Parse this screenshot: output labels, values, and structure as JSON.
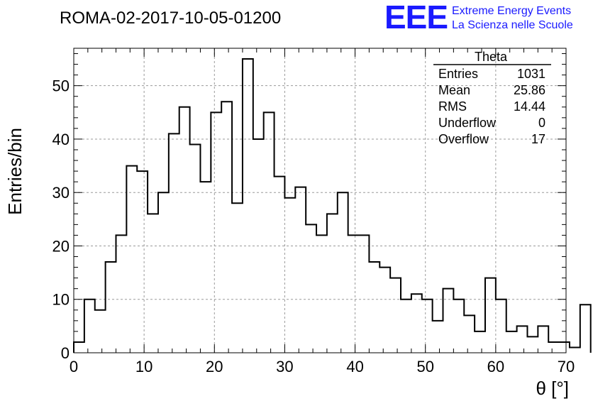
{
  "chart_data": {
    "type": "histogram",
    "title": "ROMA-02-2017-10-05-01200",
    "xlabel": "θ [°]",
    "ylabel": "Entries/bin",
    "xlim": [
      0,
      70
    ],
    "ylim": [
      0,
      57
    ],
    "grid": true,
    "x_ticks": [
      0,
      10,
      20,
      30,
      40,
      50,
      60,
      70
    ],
    "y_ticks": [
      0,
      10,
      20,
      30,
      40,
      50
    ],
    "bin_width": 1.5,
    "bin_start": 0,
    "series": [
      {
        "values": [
          2,
          10,
          8,
          17,
          22,
          35,
          34,
          26,
          30,
          41,
          46,
          39,
          32,
          45,
          47,
          28,
          55,
          40,
          45,
          33,
          29,
          31,
          24,
          22,
          26,
          30,
          22,
          22,
          17,
          16,
          14,
          10,
          11,
          10,
          6,
          12,
          10,
          7,
          4,
          14,
          10,
          4,
          5,
          3,
          5,
          2,
          2,
          1,
          9
        ]
      }
    ]
  },
  "stats_box": {
    "name": "Theta",
    "rows": [
      {
        "label": "Entries",
        "value": "1031"
      },
      {
        "label": "Mean",
        "value": "25.86"
      },
      {
        "label": "RMS",
        "value": "14.44"
      },
      {
        "label": "Underflow",
        "value": "0"
      },
      {
        "label": "Overflow",
        "value": "17"
      }
    ]
  },
  "logo": {
    "mark": "EEE",
    "line1": "Extreme Energy Events",
    "line2": "La Scienza nelle Scuole",
    "color": "#1a1aff"
  }
}
